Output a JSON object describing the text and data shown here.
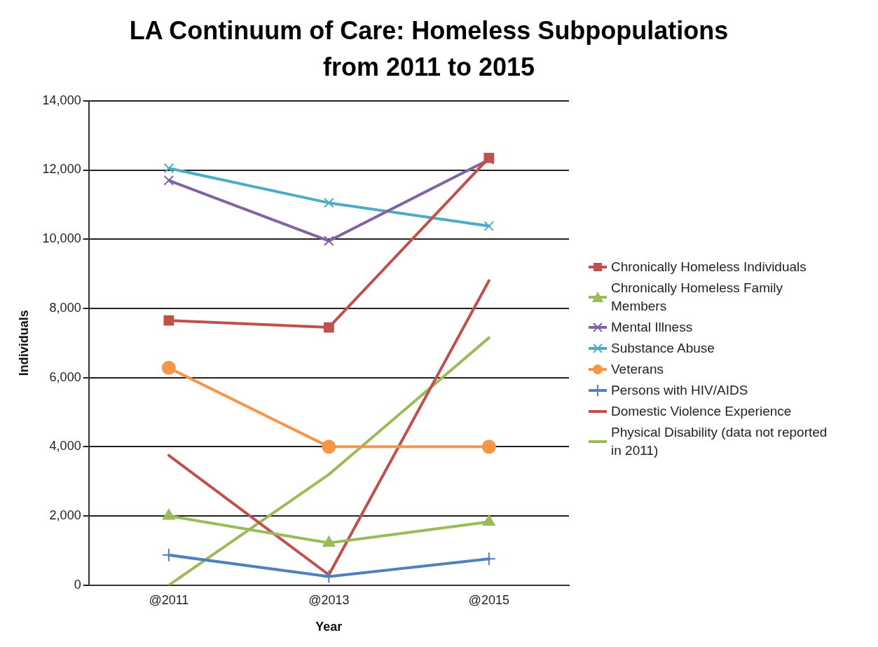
{
  "chart_data": {
    "type": "line",
    "title": "LA Continuum of Care: Homeless Subpopulations from 2011 to 2015",
    "xlabel": "Year",
    "ylabel": "Individuals",
    "categories": [
      "@2011",
      "@2013",
      "@2015"
    ],
    "ylim": [
      0,
      14000
    ],
    "yticks": [
      0,
      {
        "value": 2000,
        "label": "2,000"
      },
      {
        "value": 4000,
        "label": "4,000"
      },
      {
        "value": 6000,
        "label": "6,000"
      },
      {
        "value": 8000,
        "label": "8,000"
      },
      {
        "value": 10000,
        "label": "10,000"
      },
      {
        "value": 12000,
        "label": "12,000"
      },
      {
        "value": 14000,
        "label": "14,000"
      }
    ],
    "grid": "y",
    "legend": "right",
    "series": [
      {
        "name": "Chronically Homeless Individuals",
        "color": "#c0504d",
        "marker": "square",
        "values": [
          7650,
          7450,
          12350
        ]
      },
      {
        "name": "Chronically Homeless Family Members",
        "color": "#9bbb59",
        "marker": "triangle",
        "values": [
          2000,
          1220,
          1830
        ]
      },
      {
        "name": "Mental Illness",
        "color": "#8064a2",
        "marker": "cross",
        "values": [
          11700,
          9950,
          12300
        ]
      },
      {
        "name": "Substance Abuse",
        "color": "#4bacc6",
        "marker": "cross",
        "values": [
          12050,
          11050,
          10380
        ]
      },
      {
        "name": "Veterans",
        "color": "#f79646",
        "marker": "circle",
        "values": [
          6280,
          4000,
          4000
        ]
      },
      {
        "name": "Persons with HIV/AIDS",
        "color": "#4f81bd",
        "marker": "plus",
        "values": [
          870,
          250,
          760
        ]
      },
      {
        "name": "Domestic Violence Experience",
        "color": "#c0504d",
        "marker": "none",
        "values": [
          3750,
          300,
          8800
        ]
      },
      {
        "name": "Physical Disability  (data not reported in 2011)",
        "color": "#9bbb59",
        "marker": "none",
        "values": [
          0,
          3200,
          7150
        ]
      }
    ]
  }
}
